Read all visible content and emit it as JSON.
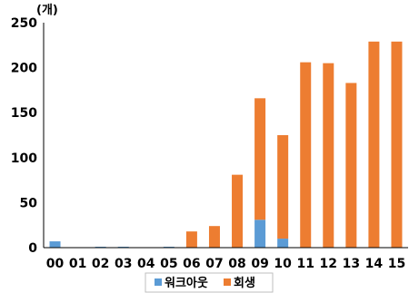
{
  "chart_data": {
    "type": "bar",
    "stacked": true,
    "unit_label": "(개)",
    "categories": [
      "00",
      "01",
      "02",
      "03",
      "04",
      "05",
      "06",
      "07",
      "08",
      "09",
      "10",
      "11",
      "12",
      "13",
      "14",
      "15"
    ],
    "series": [
      {
        "name": "워크아웃",
        "color": "#5B9BD5",
        "values": [
          7,
          0,
          1,
          1,
          0,
          1,
          0,
          0,
          0,
          31,
          10,
          0,
          0,
          0,
          0,
          0
        ]
      },
      {
        "name": "회생",
        "color": "#ED7D31",
        "values": [
          0,
          0,
          0,
          0,
          0,
          0,
          18,
          24,
          81,
          135,
          115,
          206,
          205,
          183,
          229,
          229
        ]
      }
    ],
    "ylim": [
      0,
      250
    ],
    "yticks": [
      0,
      50,
      100,
      150,
      200,
      250
    ],
    "grid": false,
    "legend_position": "bottom"
  }
}
